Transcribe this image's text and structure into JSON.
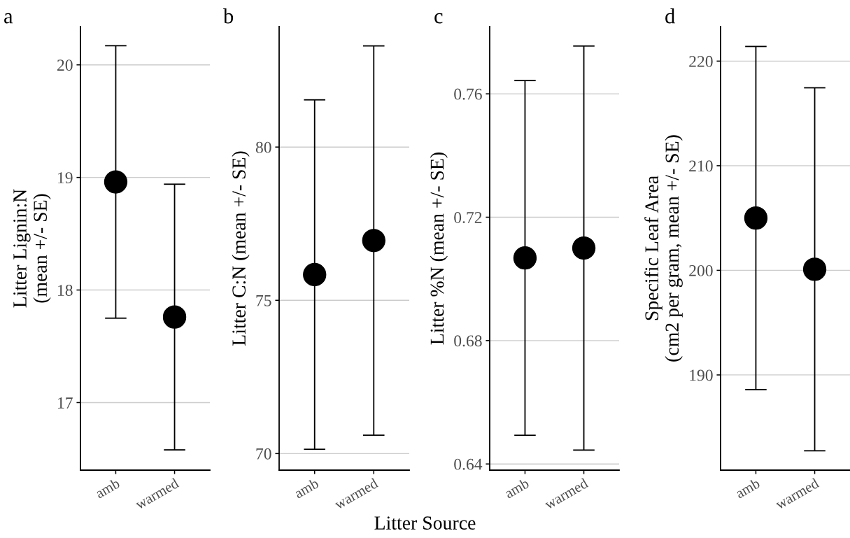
{
  "chart_data": [
    {
      "type": "scatter",
      "title": "a",
      "ylabel": "Litter Lignin:N\n(mean +/- SE)",
      "categories": [
        "amb",
        "warmed"
      ],
      "series": [
        {
          "color": "#000000",
          "values": [
            18.96,
            17.76
          ],
          "errors": [
            1.21,
            1.18
          ]
        }
      ],
      "ylim": [
        16.4,
        20.34
      ],
      "yticks": [
        17,
        18,
        19,
        20
      ],
      "grid": "y",
      "marker": "circle"
    },
    {
      "type": "scatter",
      "title": "b",
      "ylabel": "Litter C:N (mean +/- SE)",
      "categories": [
        "amb",
        "warmed"
      ],
      "series": [
        {
          "color": "#000000",
          "values": [
            75.84,
            76.95
          ],
          "errors": [
            5.7,
            6.35
          ]
        }
      ],
      "ylim": [
        69.46,
        83.93
      ],
      "yticks": [
        70,
        75,
        80
      ],
      "grid": "y",
      "marker": "circle",
      "xlabel": "Litter Source"
    },
    {
      "type": "scatter",
      "title": "c",
      "ylabel": "Litter %N (mean +/- SE)",
      "categories": [
        "amb",
        "warmed"
      ],
      "series": [
        {
          "color": "#000000",
          "values": [
            0.7068,
            0.71
          ],
          "errors": [
            0.0575,
            0.0655
          ]
        }
      ],
      "ylim": [
        0.638,
        0.7818
      ],
      "yticks": [
        {
          "value": 0.64,
          "label": "0.64"
        },
        {
          "value": 0.68,
          "label": "0.68"
        },
        {
          "value": 0.72,
          "label": "0.72"
        },
        {
          "value": 0.76,
          "label": "0.76"
        }
      ],
      "grid": "y",
      "marker": "circle"
    },
    {
      "type": "scatter",
      "title": "d",
      "ylabel": "Specific Leaf Area\n(cm2 per gram, mean +/- SE)",
      "categories": [
        "amb",
        "warmed"
      ],
      "series": [
        {
          "color": "#000000",
          "values": [
            205.0,
            200.1
          ],
          "errors": [
            16.4,
            17.35
          ]
        }
      ],
      "ylim": [
        180.9,
        223.3
      ],
      "yticks": [
        190,
        200,
        210,
        220
      ],
      "grid": "y",
      "marker": "circle"
    }
  ]
}
